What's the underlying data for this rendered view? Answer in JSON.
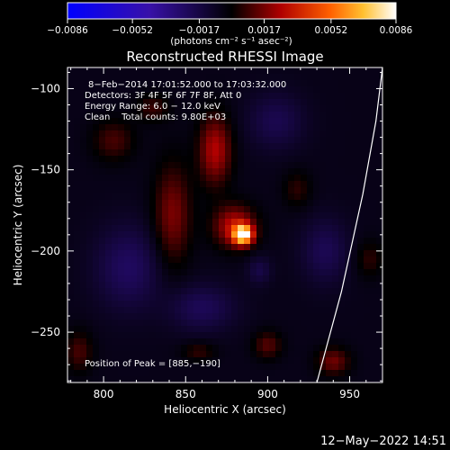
{
  "chart_data": {
    "type": "heatmap",
    "title": "Reconstructed RHESSI Image",
    "xlabel": "Heliocentric X (arcsec)",
    "ylabel": "Heliocentric Y (arcsec)",
    "xlim": [
      778,
      970
    ],
    "ylim": [
      -281,
      -87
    ],
    "x_ticks": [
      800,
      850,
      900,
      950
    ],
    "y_ticks": [
      -100,
      -150,
      -200,
      -250
    ],
    "x_tick_labels": [
      "800",
      "850",
      "900",
      "950"
    ],
    "y_tick_labels": [
      "−100",
      "−150",
      "−200",
      "−250"
    ],
    "colorbar": {
      "range": [
        -0.0086,
        0.0086
      ],
      "ticks": [
        -0.0086,
        -0.0052,
        -0.0017,
        0.0017,
        0.0052,
        0.0086
      ],
      "tick_labels": [
        "−0.0086",
        "−0.0052",
        "−0.0017",
        "0.0017",
        "0.0052",
        "0.0086"
      ],
      "units_label": "(photons cm⁻² s⁻¹ asec⁻²)"
    },
    "info_lines": [
      "8−Feb−2014 17:01:52.000 to 17:03:32.000",
      "Detectors: 3F 4F 5F 6F 7F 8F, Att 0",
      "Energy Range: 6.0 − 12.0 keV",
      "Clean    Total counts: 9.80E+03"
    ],
    "peak_label": "Position of Peak = [885,−190]",
    "peak": {
      "x": 885,
      "y": -190,
      "value": 0.0086
    },
    "limb_curve": [
      [
        930,
        -281
      ],
      [
        945,
        -225
      ],
      [
        958,
        -165
      ],
      [
        966,
        -120
      ],
      [
        970,
        -87
      ]
    ],
    "emission_features": [
      {
        "x": 885,
        "y": -190,
        "sx": 4,
        "sy": 4,
        "amp": 0.0086
      },
      {
        "x": 880,
        "y": -185,
        "sx": 9,
        "sy": 9,
        "amp": 0.0035
      },
      {
        "x": 868,
        "y": -138,
        "sx": 7,
        "sy": 15,
        "amp": 0.0032
      },
      {
        "x": 842,
        "y": -178,
        "sx": 8,
        "sy": 22,
        "amp": 0.0024
      },
      {
        "x": 806,
        "y": -132,
        "sx": 9,
        "sy": 9,
        "amp": 0.0016
      },
      {
        "x": 830,
        "y": -112,
        "sx": 7,
        "sy": 6,
        "amp": 0.0014
      },
      {
        "x": 918,
        "y": -162,
        "sx": 6,
        "sy": 8,
        "amp": 0.0012
      },
      {
        "x": 900,
        "y": -258,
        "sx": 6,
        "sy": 6,
        "amp": 0.0018
      },
      {
        "x": 858,
        "y": -262,
        "sx": 7,
        "sy": 4,
        "amp": 0.0013
      },
      {
        "x": 940,
        "y": -268,
        "sx": 7,
        "sy": 6,
        "amp": 0.0022
      },
      {
        "x": 962,
        "y": -205,
        "sx": 6,
        "sy": 8,
        "amp": 0.0012
      },
      {
        "x": 785,
        "y": -262,
        "sx": 6,
        "sy": 9,
        "amp": 0.0016
      },
      {
        "x": 895,
        "y": -212,
        "sx": 5,
        "sy": 6,
        "amp": -0.0012
      },
      {
        "x": 815,
        "y": -210,
        "sx": 14,
        "sy": 18,
        "amp": -0.0018
      },
      {
        "x": 860,
        "y": -235,
        "sx": 14,
        "sy": 10,
        "amp": -0.0016
      },
      {
        "x": 905,
        "y": -120,
        "sx": 12,
        "sy": 12,
        "amp": -0.0014
      },
      {
        "x": 935,
        "y": -200,
        "sx": 10,
        "sy": 14,
        "amp": -0.0015
      }
    ]
  },
  "timestamp": "12−May−2022 14:51"
}
